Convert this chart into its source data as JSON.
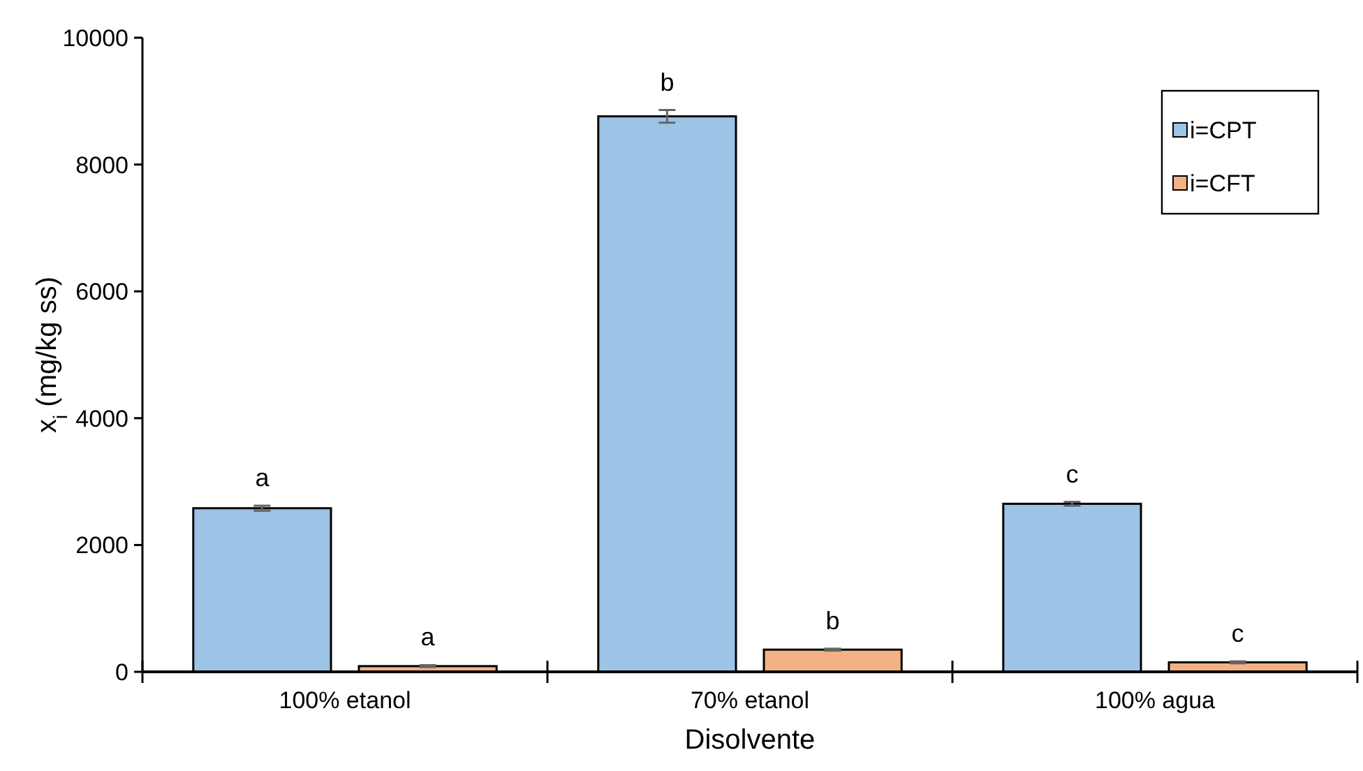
{
  "chart_data": {
    "type": "bar",
    "xlabel": "Disolvente",
    "ylabel": "x$_{i}$ (mg/kg ss)",
    "categories": [
      "100% etanol",
      "70% etanol",
      "100% agua"
    ],
    "series": [
      {
        "name": "i=CPT",
        "color": "#9dc3e6",
        "values": [
          2580,
          8760,
          2650
        ],
        "errors": [
          40,
          100,
          30
        ]
      },
      {
        "name": "i=CFT",
        "color": "#f4b183",
        "values": [
          90,
          350,
          150
        ],
        "errors": [
          15,
          15,
          15
        ]
      }
    ],
    "ylim": [
      0,
      10000
    ],
    "yticks": [
      0,
      2000,
      4000,
      6000,
      8000,
      10000
    ],
    "legend": "top right",
    "annotations": [
      "a",
      "a",
      "b",
      "b",
      "c",
      "c"
    ]
  }
}
